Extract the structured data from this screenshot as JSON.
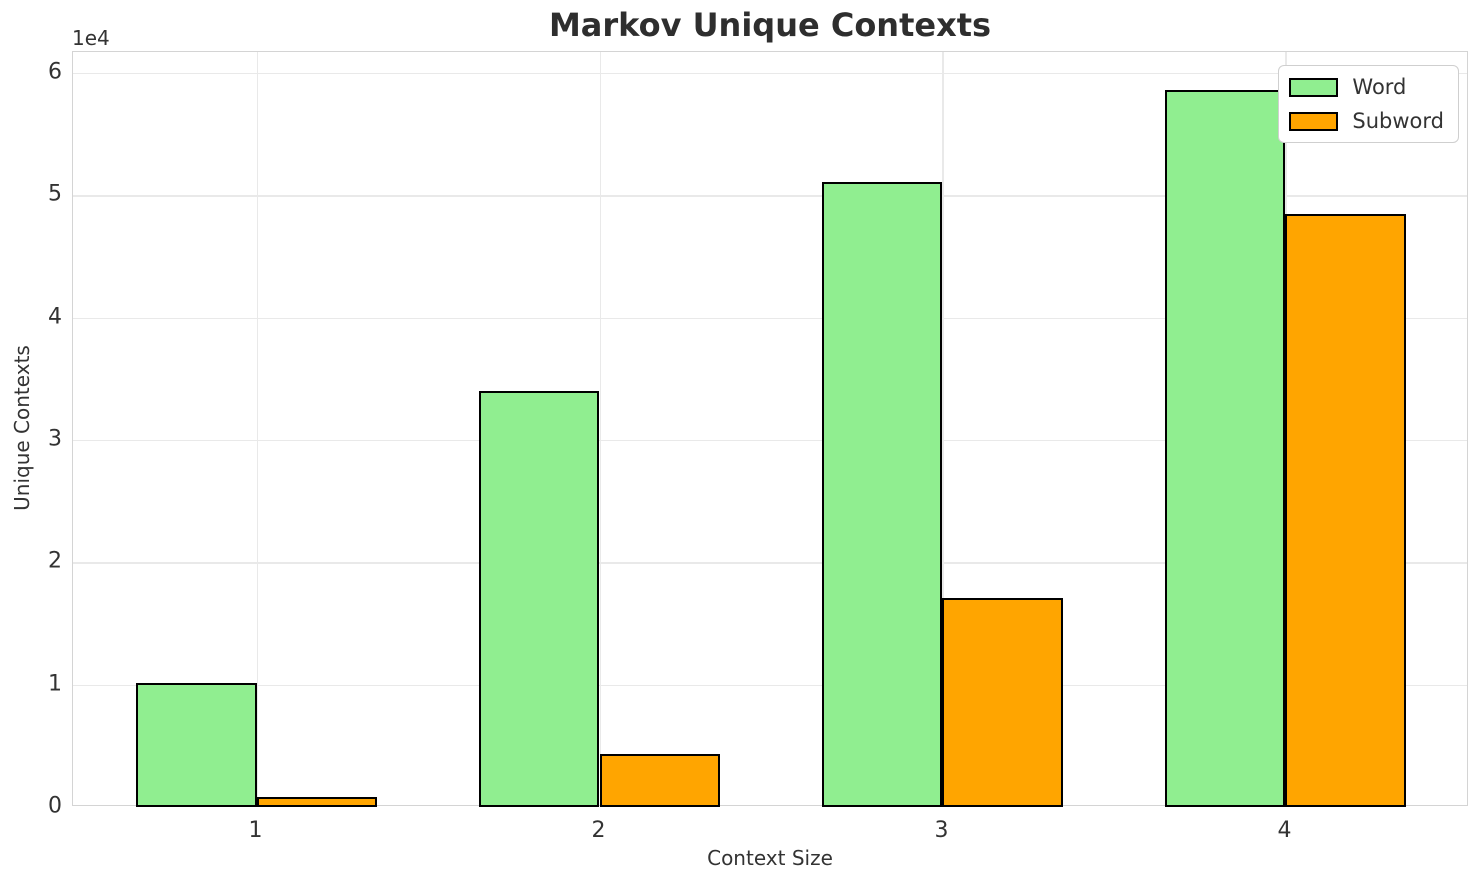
{
  "chart_data": {
    "type": "bar",
    "title": "Markov Unique Contexts",
    "xlabel": "Context Size",
    "ylabel": "Unique Contexts",
    "y_offset_text": "1e4",
    "categories": [
      "1",
      "2",
      "3",
      "4"
    ],
    "series": [
      {
        "name": "Word",
        "color": "#90ee90",
        "values": [
          10100,
          34000,
          51100,
          58600
        ]
      },
      {
        "name": "Subword",
        "color": "#ffa500",
        "values": [
          800,
          4300,
          17100,
          48500
        ]
      }
    ],
    "bar_edge_color": "#000000",
    "bar_width_units": 0.35,
    "xlim": [
      -0.535,
      3.535
    ],
    "ylim": [
      0,
      61700
    ],
    "y_tick_values": [
      0,
      10000,
      20000,
      30000,
      40000,
      50000,
      60000
    ],
    "y_tick_labels": [
      "0",
      "1",
      "2",
      "3",
      "4",
      "5",
      "6"
    ],
    "grid": true,
    "grid_color": "#e9e9e9",
    "spine_color": "#d4d4d4",
    "text_color": "#333333",
    "legend_position": "upper right"
  }
}
